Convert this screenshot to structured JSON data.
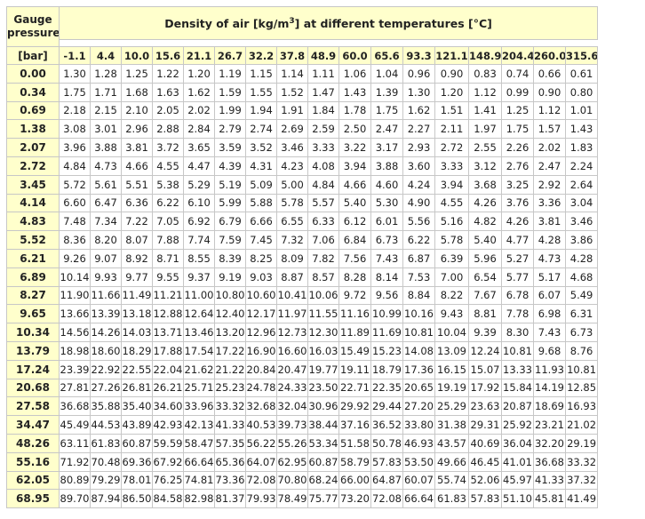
{
  "header": {
    "gauge_line1": "Gauge",
    "gauge_line2": "pressure",
    "unit": "[bar]",
    "title_pre": "Density of air [kg/m",
    "title_sup": "3",
    "title_post": "] at different temperatures [°C]"
  },
  "temperatures": [
    "-1.1",
    "4.4",
    "10.0",
    "15.6",
    "21.1",
    "26.7",
    "32.2",
    "37.8",
    "48.9",
    "60.0",
    "65.6",
    "93.3",
    "121.1",
    "148.9",
    "204.4",
    "260.0",
    "315.6"
  ],
  "rows": [
    {
      "p": "0.00",
      "v": [
        "1.30",
        "1.28",
        "1.25",
        "1.22",
        "1.20",
        "1.19",
        "1.15",
        "1.14",
        "1.11",
        "1.06",
        "1.04",
        "0.96",
        "0.90",
        "0.83",
        "0.74",
        "0.66",
        "0.61"
      ]
    },
    {
      "p": "0.34",
      "v": [
        "1.75",
        "1.71",
        "1.68",
        "1.63",
        "1.62",
        "1.59",
        "1.55",
        "1.52",
        "1.47",
        "1.43",
        "1.39",
        "1.30",
        "1.20",
        "1.12",
        "0.99",
        "0.90",
        "0.80"
      ]
    },
    {
      "p": "0.69",
      "v": [
        "2.18",
        "2.15",
        "2.10",
        "2.05",
        "2.02",
        "1.99",
        "1.94",
        "1.91",
        "1.84",
        "1.78",
        "1.75",
        "1.62",
        "1.51",
        "1.41",
        "1.25",
        "1.12",
        "1.01"
      ]
    },
    {
      "p": "1.38",
      "v": [
        "3.08",
        "3.01",
        "2.96",
        "2.88",
        "2.84",
        "2.79",
        "2.74",
        "2.69",
        "2.59",
        "2.50",
        "2.47",
        "2.27",
        "2.11",
        "1.97",
        "1.75",
        "1.57",
        "1.43"
      ]
    },
    {
      "p": "2.07",
      "v": [
        "3.96",
        "3.88",
        "3.81",
        "3.72",
        "3.65",
        "3.59",
        "3.52",
        "3.46",
        "3.33",
        "3.22",
        "3.17",
        "2.93",
        "2.72",
        "2.55",
        "2.26",
        "2.02",
        "1.83"
      ]
    },
    {
      "p": "2.72",
      "v": [
        "4.84",
        "4.73",
        "4.66",
        "4.55",
        "4.47",
        "4.39",
        "4.31",
        "4.23",
        "4.08",
        "3.94",
        "3.88",
        "3.60",
        "3.33",
        "3.12",
        "2.76",
        "2.47",
        "2.24"
      ]
    },
    {
      "p": "3.45",
      "v": [
        "5.72",
        "5.61",
        "5.51",
        "5.38",
        "5.29",
        "5.19",
        "5.09",
        "5.00",
        "4.84",
        "4.66",
        "4.60",
        "4.24",
        "3.94",
        "3.68",
        "3.25",
        "2.92",
        "2.64"
      ]
    },
    {
      "p": "4.14",
      "v": [
        "6.60",
        "6.47",
        "6.36",
        "6.22",
        "6.10",
        "5.99",
        "5.88",
        "5.78",
        "5.57",
        "5.40",
        "5.30",
        "4.90",
        "4.55",
        "4.26",
        "3.76",
        "3.36",
        "3.04"
      ]
    },
    {
      "p": "4.83",
      "v": [
        "7.48",
        "7.34",
        "7.22",
        "7.05",
        "6.92",
        "6.79",
        "6.66",
        "6.55",
        "6.33",
        "6.12",
        "6.01",
        "5.56",
        "5.16",
        "4.82",
        "4.26",
        "3.81",
        "3.46"
      ]
    },
    {
      "p": "5.52",
      "v": [
        "8.36",
        "8.20",
        "8.07",
        "7.88",
        "7.74",
        "7.59",
        "7.45",
        "7.32",
        "7.06",
        "6.84",
        "6.73",
        "6.22",
        "5.78",
        "5.40",
        "4.77",
        "4.28",
        "3.86"
      ]
    },
    {
      "p": "6.21",
      "v": [
        "9.26",
        "9.07",
        "8.92",
        "8.71",
        "8.55",
        "8.39",
        "8.25",
        "8.09",
        "7.82",
        "7.56",
        "7.43",
        "6.87",
        "6.39",
        "5.96",
        "5.27",
        "4.73",
        "4.28"
      ]
    },
    {
      "p": "6.89",
      "v": [
        "10.14",
        "9.93",
        "9.77",
        "9.55",
        "9.37",
        "9.19",
        "9.03",
        "8.87",
        "8.57",
        "8.28",
        "8.14",
        "7.53",
        "7.00",
        "6.54",
        "5.77",
        "5.17",
        "4.68"
      ]
    },
    {
      "p": "8.27",
      "v": [
        "11.90",
        "11.66",
        "11.49",
        "11.21",
        "11.00",
        "10.80",
        "10.60",
        "10.41",
        "10.06",
        "9.72",
        "9.56",
        "8.84",
        "8.22",
        "7.67",
        "6.78",
        "6.07",
        "5.49"
      ]
    },
    {
      "p": "9.65",
      "v": [
        "13.66",
        "13.39",
        "13.18",
        "12.88",
        "12.64",
        "12.40",
        "12.17",
        "11.97",
        "11.55",
        "11.16",
        "10.99",
        "10.16",
        "9.43",
        "8.81",
        "7.78",
        "6.98",
        "6.31"
      ]
    },
    {
      "p": "10.34",
      "v": [
        "14.56",
        "14.26",
        "14.03",
        "13.71",
        "13.46",
        "13.20",
        "12.96",
        "12.73",
        "12.30",
        "11.89",
        "11.69",
        "10.81",
        "10.04",
        "9.39",
        "8.30",
        "7.43",
        "6.73"
      ]
    },
    {
      "p": "13.79",
      "v": [
        "18.98",
        "18.60",
        "18.29",
        "17.88",
        "17.54",
        "17.22",
        "16.90",
        "16.60",
        "16.03",
        "15.49",
        "15.23",
        "14.08",
        "13.09",
        "12.24",
        "10.81",
        "9.68",
        "8.76"
      ]
    },
    {
      "p": "17.24",
      "v": [
        "23.39",
        "22.92",
        "22.55",
        "22.04",
        "21.62",
        "21.22",
        "20.84",
        "20.47",
        "19.77",
        "19.11",
        "18.79",
        "17.36",
        "16.15",
        "15.07",
        "13.33",
        "11.93",
        "10.81"
      ]
    },
    {
      "p": "20.68",
      "v": [
        "27.81",
        "27.26",
        "26.81",
        "26.21",
        "25.71",
        "25.23",
        "24.78",
        "24.33",
        "23.50",
        "22.71",
        "22.35",
        "20.65",
        "19.19",
        "17.92",
        "15.84",
        "14.19",
        "12.85"
      ]
    },
    {
      "p": "27.58",
      "v": [
        "36.68",
        "35.88",
        "35.40",
        "34.60",
        "33.96",
        "33.32",
        "32.68",
        "32.04",
        "30.96",
        "29.92",
        "29.44",
        "27.20",
        "25.29",
        "23.63",
        "20.87",
        "18.69",
        "16.93"
      ]
    },
    {
      "p": "34.47",
      "v": [
        "45.49",
        "44.53",
        "43.89",
        "42.93",
        "42.13",
        "41.33",
        "40.53",
        "39.73",
        "38.44",
        "37.16",
        "36.52",
        "33.80",
        "31.38",
        "29.31",
        "25.92",
        "23.21",
        "21.02"
      ]
    },
    {
      "p": "48.26",
      "v": [
        "63.11",
        "61.83",
        "60.87",
        "59.59",
        "58.47",
        "57.35",
        "56.22",
        "55.26",
        "53.34",
        "51.58",
        "50.78",
        "46.93",
        "43.57",
        "40.69",
        "36.04",
        "32.20",
        "29.19"
      ]
    },
    {
      "p": "55.16",
      "v": [
        "71.92",
        "70.48",
        "69.36",
        "67.92",
        "66.64",
        "65.36",
        "64.07",
        "62.95",
        "60.87",
        "58.79",
        "57.83",
        "53.50",
        "49.66",
        "46.45",
        "41.01",
        "36.68",
        "33.32"
      ]
    },
    {
      "p": "62.05",
      "v": [
        "80.89",
        "79.29",
        "78.01",
        "76.25",
        "74.81",
        "73.36",
        "72.08",
        "70.80",
        "68.24",
        "66.00",
        "64.87",
        "60.07",
        "55.74",
        "52.06",
        "45.97",
        "41.33",
        "37.32"
      ]
    },
    {
      "p": "68.95",
      "v": [
        "89.70",
        "87.94",
        "86.50",
        "84.58",
        "82.98",
        "81.37",
        "79.93",
        "78.49",
        "75.77",
        "73.20",
        "72.08",
        "66.64",
        "61.83",
        "57.83",
        "51.10",
        "45.81",
        "41.49"
      ]
    }
  ]
}
